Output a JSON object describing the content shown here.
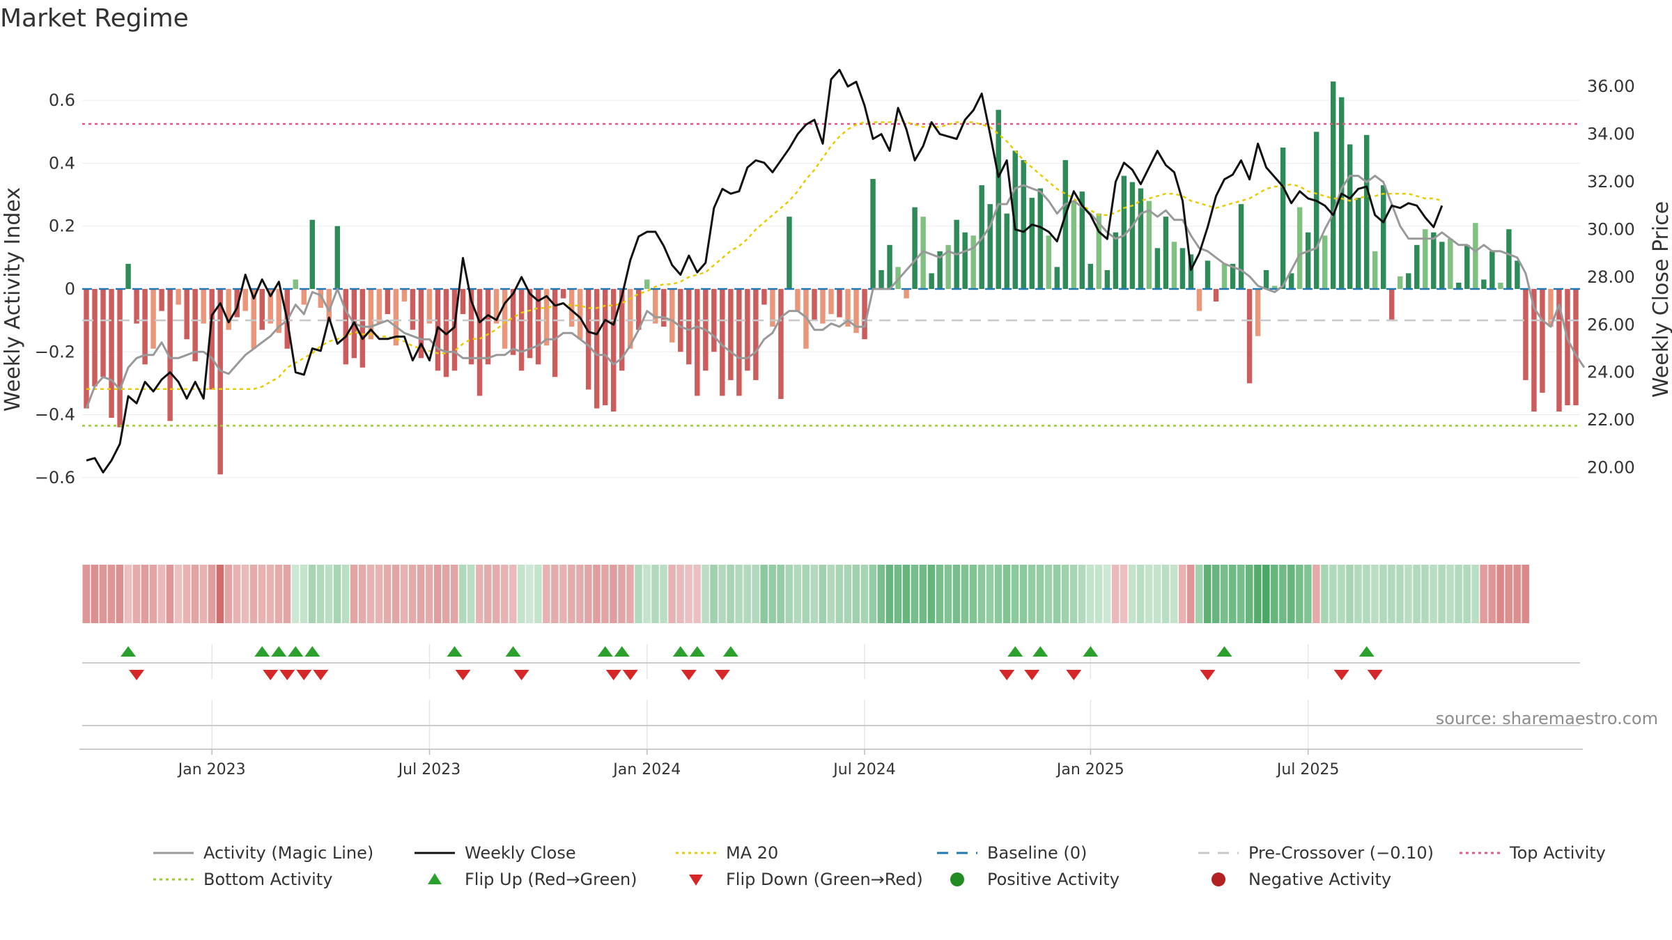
{
  "chart_data": {
    "type": "bar",
    "title": "Market Regime",
    "ylabel_left": "Weekly Activity Index",
    "ylabel_right": "Weekly Close Price",
    "source": "source: sharemaestro.com",
    "ylim_left": [
      -0.72,
      0.72
    ],
    "ylim_right": [
      18.0,
      37.0
    ],
    "yticks_left": [
      {
        "v": 0.6,
        "label": "0.6"
      },
      {
        "v": 0.4,
        "label": "0.4"
      },
      {
        "v": 0.2,
        "label": "0.2"
      },
      {
        "v": 0,
        "label": "0"
      },
      {
        "v": -0.2,
        "label": "−0.2"
      },
      {
        "v": -0.4,
        "label": "−0.4"
      },
      {
        "v": -0.6,
        "label": "−0.6"
      }
    ],
    "yticks_right": [
      {
        "v": 36,
        "label": "36.00"
      },
      {
        "v": 34,
        "label": "34.00"
      },
      {
        "v": 32,
        "label": "32.00"
      },
      {
        "v": 30,
        "label": "30.00"
      },
      {
        "v": 28,
        "label": "28.00"
      },
      {
        "v": 26,
        "label": "26.00"
      },
      {
        "v": 24,
        "label": "24.00"
      },
      {
        "v": 22,
        "label": "22.00"
      },
      {
        "v": 20,
        "label": "20.00"
      }
    ],
    "xticks": [
      {
        "week": 15,
        "label": "Jan 2023"
      },
      {
        "week": 41,
        "label": "Jul 2023"
      },
      {
        "week": 67,
        "label": "Jan 2024"
      },
      {
        "week": 93,
        "label": "Jul 2024"
      },
      {
        "week": 120,
        "label": "Jan 2025"
      },
      {
        "week": 146,
        "label": "Jul 2025"
      }
    ],
    "grid": true,
    "legend_placement": "bottom",
    "activity": [
      -0.38,
      -0.31,
      -0.28,
      -0.41,
      -0.44,
      0.08,
      -0.11,
      -0.24,
      -0.19,
      -0.07,
      -0.42,
      -0.05,
      -0.16,
      -0.23,
      -0.11,
      -0.32,
      -0.59,
      -0.13,
      -0.09,
      -0.07,
      -0.19,
      -0.13,
      -0.11,
      -0.14,
      -0.19,
      0.03,
      -0.05,
      0.22,
      -0.06,
      -0.1,
      0.2,
      -0.24,
      -0.22,
      -0.25,
      -0.16,
      -0.11,
      -0.08,
      -0.18,
      -0.04,
      -0.13,
      -0.22,
      -0.11,
      -0.26,
      -0.28,
      -0.26,
      -0.08,
      -0.24,
      -0.34,
      -0.24,
      -0.11,
      -0.19,
      -0.21,
      -0.26,
      -0.22,
      -0.24,
      -0.18,
      -0.28,
      -0.03,
      -0.12,
      -0.16,
      -0.32,
      -0.38,
      -0.37,
      -0.39,
      -0.26,
      -0.19,
      -0.13,
      0.03,
      -0.11,
      -0.12,
      -0.17,
      -0.2,
      -0.24,
      -0.34,
      -0.26,
      -0.2,
      -0.34,
      -0.29,
      -0.34,
      -0.26,
      -0.29,
      -0.05,
      -0.12,
      -0.35,
      0.23,
      -0.07,
      -0.19,
      -0.1,
      -0.11,
      -0.08,
      -0.09,
      -0.12,
      -0.14,
      -0.16,
      0.35,
      0.06,
      0.14,
      0.07,
      -0.03,
      0.26,
      0.23,
      0.05,
      0.12,
      0.14,
      0.22,
      0.18,
      0.17,
      0.33,
      0.27,
      0.57,
      0.24,
      0.44,
      0.41,
      0.29,
      0.32,
      0.17,
      0.07,
      0.41,
      0.28,
      0.31,
      0.08,
      0.24,
      0.06,
      0.18,
      0.36,
      0.34,
      0.32,
      0.28,
      0.13,
      0.23,
      0.15,
      0.13,
      0.11,
      -0.07,
      0.09,
      -0.04,
      0.08,
      0.08,
      0.27,
      -0.3,
      -0.15,
      0.06,
      0.01,
      0.45,
      0.05,
      0.26,
      0.18,
      0.5,
      0.17,
      0.66,
      0.61,
      0.46,
      0.29,
      0.49,
      0.12,
      0.33,
      -0.1,
      0.04,
      0.05,
      0.14,
      0.19,
      0.18,
      0.15,
      0.16,
      0.02,
      0.14,
      0.21,
      0.03,
      0.12,
      0.02,
      0.19,
      0.09,
      -0.29,
      -0.39,
      -0.33,
      -0.12,
      -0.39,
      -0.37,
      -0.37
    ],
    "magic_line": [
      -0.38,
      -0.31,
      -0.28,
      -0.29,
      -0.32,
      -0.25,
      -0.22,
      -0.21,
      -0.21,
      -0.17,
      -0.22,
      -0.22,
      -0.21,
      -0.2,
      -0.2,
      -0.22,
      -0.26,
      -0.27,
      -0.24,
      -0.21,
      -0.19,
      -0.17,
      -0.15,
      -0.12,
      -0.1,
      -0.05,
      -0.08,
      -0.01,
      -0.02,
      -0.07,
      -0.0,
      -0.07,
      -0.11,
      -0.12,
      -0.12,
      -0.11,
      -0.1,
      -0.12,
      -0.14,
      -0.15,
      -0.16,
      -0.16,
      -0.19,
      -0.2,
      -0.2,
      -0.22,
      -0.22,
      -0.22,
      -0.22,
      -0.21,
      -0.21,
      -0.19,
      -0.2,
      -0.19,
      -0.18,
      -0.16,
      -0.16,
      -0.14,
      -0.14,
      -0.16,
      -0.18,
      -0.21,
      -0.21,
      -0.24,
      -0.22,
      -0.18,
      -0.13,
      -0.07,
      -0.09,
      -0.09,
      -0.1,
      -0.12,
      -0.13,
      -0.12,
      -0.13,
      -0.15,
      -0.18,
      -0.2,
      -0.22,
      -0.22,
      -0.2,
      -0.16,
      -0.14,
      -0.09,
      -0.07,
      -0.07,
      -0.09,
      -0.13,
      -0.13,
      -0.11,
      -0.12,
      -0.1,
      -0.12,
      -0.12,
      -0.0,
      0.0,
      0.0,
      0.03,
      0.06,
      0.09,
      0.12,
      0.11,
      0.1,
      0.12,
      0.11,
      0.12,
      0.13,
      0.16,
      0.2,
      0.27,
      0.27,
      0.32,
      0.33,
      0.32,
      0.31,
      0.28,
      0.24,
      0.27,
      0.28,
      0.26,
      0.24,
      0.21,
      0.18,
      0.16,
      0.17,
      0.2,
      0.24,
      0.25,
      0.23,
      0.25,
      0.22,
      0.22,
      0.17,
      0.13,
      0.12,
      0.1,
      0.08,
      0.07,
      0.06,
      0.04,
      0.01,
      0.0,
      -0.01,
      0.01,
      0.06,
      0.11,
      0.12,
      0.13,
      0.19,
      0.24,
      0.32,
      0.36,
      0.36,
      0.34,
      0.36,
      0.34,
      0.27,
      0.2,
      0.16,
      0.16,
      0.16,
      0.16,
      0.18,
      0.16,
      0.14,
      0.14,
      0.12,
      0.14,
      0.12,
      0.12,
      0.11,
      0.1,
      0.05,
      -0.06,
      -0.1,
      -0.12,
      -0.05,
      -0.16,
      -0.21,
      -0.25
    ],
    "weekly_close": [
      20.3,
      20.4,
      19.8,
      20.3,
      21.0,
      23.0,
      22.7,
      23.6,
      23.2,
      23.7,
      24.0,
      23.6,
      22.9,
      23.6,
      22.9,
      26.4,
      26.9,
      26.1,
      26.7,
      28.1,
      27.1,
      27.9,
      27.2,
      27.8,
      26.2,
      24.0,
      23.9,
      25.0,
      24.9,
      26.3,
      25.2,
      25.5,
      26.1,
      25.4,
      25.8,
      25.4,
      25.4,
      25.5,
      25.5,
      24.5,
      25.2,
      24.5,
      25.9,
      25.6,
      25.9,
      28.8,
      27.0,
      26.1,
      26.4,
      26.2,
      26.9,
      27.3,
      28.0,
      27.3,
      27.0,
      27.2,
      26.8,
      26.9,
      26.6,
      26.3,
      25.7,
      25.6,
      26.2,
      26.0,
      27.2,
      28.7,
      29.7,
      29.9,
      29.9,
      29.3,
      28.5,
      28.1,
      28.9,
      28.2,
      28.6,
      30.9,
      31.7,
      31.5,
      31.6,
      32.6,
      32.9,
      32.8,
      32.4,
      32.9,
      33.4,
      34.0,
      34.4,
      34.6,
      33.6,
      36.3,
      36.7,
      36.0,
      36.2,
      35.2,
      33.8,
      34.0,
      33.3,
      35.1,
      34.2,
      32.9,
      33.5,
      34.5,
      34.0,
      33.9,
      33.8,
      34.6,
      35.0,
      35.7,
      34.0,
      32.2,
      32.9,
      30.0,
      29.9,
      30.2,
      30.1,
      29.9,
      29.5,
      30.6,
      31.6,
      31.0,
      30.6,
      29.9,
      29.6,
      32.0,
      32.8,
      32.5,
      31.9,
      32.6,
      33.3,
      32.7,
      32.4,
      31.2,
      28.3,
      29.0,
      30.1,
      31.4,
      32.1,
      32.3,
      32.9,
      32.1,
      33.6,
      32.6,
      32.2,
      31.8,
      31.1,
      31.6,
      31.3,
      31.2,
      31.0,
      30.6,
      31.5,
      31.3,
      31.7,
      31.8,
      30.6,
      30.3,
      31.0,
      30.9,
      31.1,
      31.0,
      30.5,
      30.1,
      31.0
    ],
    "ma20": [
      23.3,
      23.3,
      23.3,
      23.3,
      23.3,
      23.3,
      23.3,
      23.3,
      23.3,
      23.3,
      23.3,
      23.3,
      23.3,
      23.3,
      23.3,
      23.3,
      23.3,
      23.3,
      23.3,
      23.3,
      23.3,
      23.4,
      23.6,
      23.8,
      24.2,
      24.4,
      24.6,
      24.8,
      25.1,
      25.3,
      25.4,
      25.5,
      25.7,
      25.6,
      25.6,
      25.5,
      25.5,
      25.4,
      25.3,
      25.1,
      25.0,
      24.9,
      24.8,
      24.8,
      24.9,
      25.2,
      25.4,
      25.4,
      25.6,
      25.8,
      26.1,
      26.3,
      26.5,
      26.6,
      26.7,
      26.7,
      26.8,
      26.9,
      26.8,
      26.8,
      26.7,
      26.7,
      26.8,
      26.8,
      26.9,
      27.1,
      27.3,
      27.4,
      27.6,
      27.7,
      27.7,
      27.8,
      28.0,
      28.1,
      28.2,
      28.5,
      28.8,
      29.1,
      29.3,
      29.6,
      30.0,
      30.3,
      30.6,
      30.9,
      31.2,
      31.6,
      32.1,
      32.5,
      33.0,
      33.5,
      33.9,
      34.2,
      34.4,
      34.5,
      34.5,
      34.5,
      34.5,
      34.6,
      34.5,
      34.4,
      34.3,
      34.3,
      34.3,
      34.4,
      34.5,
      34.5,
      34.5,
      34.4,
      34.3,
      34.0,
      33.7,
      33.3,
      32.9,
      32.6,
      32.3,
      32.0,
      31.7,
      31.5,
      31.3,
      31.0,
      30.8,
      30.6,
      30.6,
      30.7,
      30.9,
      31.0,
      31.2,
      31.3,
      31.4,
      31.5,
      31.5,
      31.4,
      31.2,
      31.1,
      31.0,
      30.9,
      31.0,
      31.1,
      31.2,
      31.3,
      31.5,
      31.7,
      31.8,
      31.8,
      31.9,
      31.8,
      31.6,
      31.5,
      31.4,
      31.3,
      31.3,
      31.2,
      31.3,
      31.4,
      31.4,
      31.5,
      31.5,
      31.5,
      31.5,
      31.4,
      31.3,
      31.3,
      31.2
    ],
    "regime_strength": [
      -0.5,
      -0.55,
      -0.5,
      -0.5,
      -0.55,
      -0.2,
      -0.35,
      -0.45,
      -0.4,
      -0.25,
      -0.5,
      -0.2,
      -0.3,
      -0.4,
      -0.3,
      -0.45,
      -0.8,
      -0.4,
      -0.3,
      -0.25,
      -0.35,
      -0.3,
      -0.3,
      -0.35,
      -0.4,
      0.15,
      0.2,
      0.35,
      0.3,
      0.25,
      0.35,
      0.25,
      -0.4,
      -0.35,
      -0.3,
      -0.3,
      -0.35,
      -0.4,
      -0.3,
      -0.35,
      -0.4,
      -0.35,
      -0.45,
      -0.4,
      -0.4,
      0.3,
      0.25,
      -0.3,
      -0.35,
      -0.35,
      -0.3,
      -0.25,
      0.2,
      0.15,
      0.2,
      -0.3,
      -0.35,
      -0.3,
      -0.35,
      -0.35,
      -0.4,
      -0.45,
      -0.4,
      -0.45,
      -0.4,
      -0.35,
      0.3,
      0.2,
      0.3,
      0.25,
      -0.3,
      -0.25,
      -0.2,
      -0.2,
      0.25,
      0.4,
      0.3,
      0.35,
      0.3,
      0.3,
      0.3,
      0.5,
      0.45,
      0.45,
      0.35,
      0.3,
      0.35,
      0.3,
      0.4,
      0.3,
      0.35,
      0.35,
      0.4,
      0.35,
      0.45,
      0.6,
      0.7,
      0.65,
      0.7,
      0.6,
      0.65,
      0.7,
      0.6,
      0.55,
      0.6,
      0.55,
      0.55,
      0.5,
      0.45,
      0.5,
      0.55,
      0.5,
      0.5,
      0.45,
      0.45,
      0.4,
      0.45,
      0.4,
      0.35,
      0.3,
      0.2,
      0.2,
      0.15,
      -0.25,
      -0.2,
      0.2,
      0.25,
      0.2,
      0.2,
      0.25,
      0.2,
      -0.3,
      -0.5,
      0.4,
      0.75,
      0.7,
      0.6,
      0.65,
      0.6,
      0.7,
      0.8,
      0.85,
      0.7,
      0.65,
      0.7,
      0.6,
      0.55,
      -0.35,
      0.35,
      0.3,
      0.3,
      0.35,
      0.3,
      0.3,
      0.25,
      0.3,
      0.3,
      0.3,
      0.25,
      0.3,
      0.3,
      0.25,
      0.3,
      0.25,
      0.3,
      0.3,
      0.25,
      -0.45,
      -0.5,
      -0.6,
      -0.55,
      -0.55,
      -0.6
    ],
    "flip_up_weeks": [
      5,
      21,
      23,
      25,
      27,
      44,
      51,
      62,
      64,
      71,
      73,
      77,
      111,
      114,
      120,
      136,
      153
    ],
    "flip_down_weeks": [
      6,
      22,
      24,
      26,
      28,
      45,
      52,
      63,
      65,
      72,
      76,
      110,
      113,
      118,
      134,
      150,
      154
    ],
    "reference_lines": {
      "baseline": 0,
      "pre_crossover": -0.1,
      "top_activity": 0.525,
      "bottom_activity": -0.435
    },
    "colors": {
      "positive_strong": "#2e8b57",
      "positive_light": "#80c080",
      "negative_strong": "#cd5c5c",
      "negative_light": "#e9967a",
      "magic_line": "#999999",
      "weekly_close": "#111111",
      "ma20": "#e6cc00",
      "baseline": "#1f77b4",
      "pre_crossover": "#c8c8c8",
      "top_activity": "#e75480",
      "bottom_activity": "#9acd32",
      "flip_up": "#2ca02c",
      "flip_down": "#d62728",
      "positive_dot": "#228b22",
      "negative_dot": "#b22222"
    },
    "legend": [
      {
        "label": "Activity (Magic Line)",
        "kind": "line",
        "color": "#999999",
        "dash": ""
      },
      {
        "label": "Weekly Close",
        "kind": "line",
        "color": "#111111",
        "dash": ""
      },
      {
        "label": "MA 20",
        "kind": "line",
        "color": "#e6cc00",
        "dash": "dotted"
      },
      {
        "label": "Baseline (0)",
        "kind": "line",
        "color": "#1f77b4",
        "dash": "dashed"
      },
      {
        "label": "Pre-Crossover (−0.10)",
        "kind": "line",
        "color": "#c8c8c8",
        "dash": "dashed"
      },
      {
        "label": "Top Activity",
        "kind": "line",
        "color": "#e75480",
        "dash": "dotted"
      },
      {
        "label": "Bottom Activity",
        "kind": "line",
        "color": "#9acd32",
        "dash": "dotted"
      },
      {
        "label": "Flip Up (Red→Green)",
        "kind": "triangle-up",
        "color": "#2ca02c",
        "dash": ""
      },
      {
        "label": "Flip Down (Green→Red)",
        "kind": "triangle-down",
        "color": "#d62728",
        "dash": ""
      },
      {
        "label": "Positive Activity",
        "kind": "dot",
        "color": "#228b22",
        "dash": ""
      },
      {
        "label": "Negative Activity",
        "kind": "dot",
        "color": "#b22222",
        "dash": ""
      }
    ]
  }
}
